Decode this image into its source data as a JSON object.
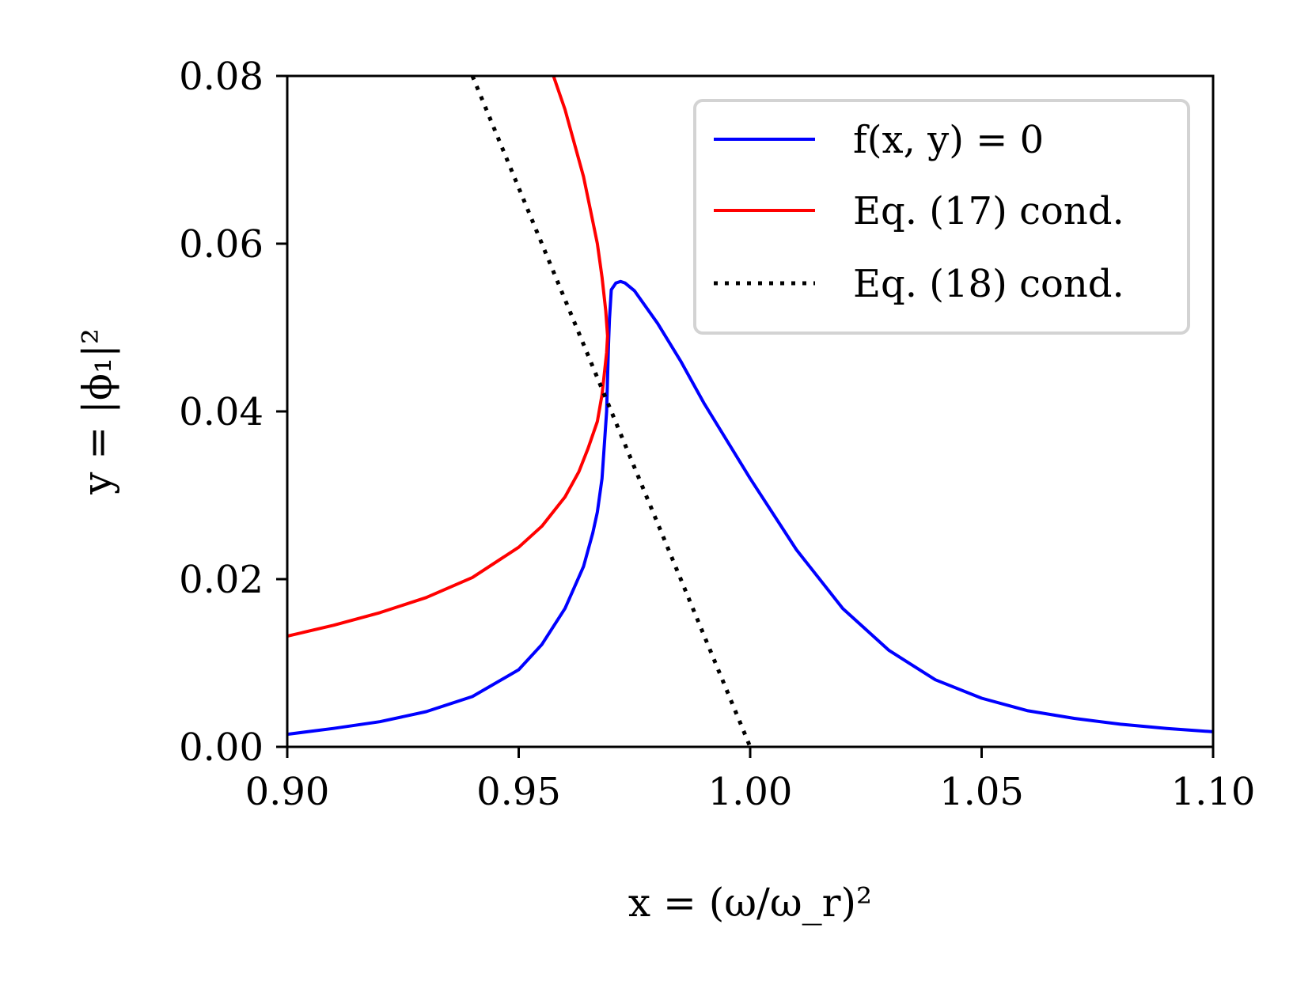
{
  "chart_data": {
    "type": "line",
    "xlabel": "x = (ω/ω_r)²",
    "ylabel": "y = |ϕ₁|²",
    "xlim": [
      0.9,
      1.1
    ],
    "ylim": [
      0.0,
      0.08
    ],
    "xticks": [
      "0.90",
      "0.95",
      "1.00",
      "1.05",
      "1.10"
    ],
    "xtick_values": [
      0.9,
      0.95,
      1.0,
      1.05,
      1.1
    ],
    "yticks": [
      "0.00",
      "0.02",
      "0.04",
      "0.06",
      "0.08"
    ],
    "ytick_values": [
      0.0,
      0.02,
      0.04,
      0.06,
      0.08
    ],
    "grid": false,
    "legend_position": "top-right",
    "series": [
      {
        "name": "f(x, y) = 0",
        "color": "#0000ff",
        "style": "solid",
        "x": [
          0.9,
          0.91,
          0.92,
          0.93,
          0.94,
          0.95,
          0.955,
          0.96,
          0.964,
          0.966,
          0.967,
          0.968,
          0.9685,
          0.969,
          0.9692,
          0.9694,
          0.9696,
          0.97,
          0.971,
          0.972,
          0.973,
          0.975,
          0.98,
          0.985,
          0.99,
          1.0,
          1.01,
          1.02,
          1.03,
          1.04,
          1.05,
          1.06,
          1.07,
          1.08,
          1.09,
          1.1
        ],
        "y": [
          0.0015,
          0.0022,
          0.003,
          0.0042,
          0.006,
          0.0092,
          0.0122,
          0.0165,
          0.0215,
          0.0255,
          0.028,
          0.032,
          0.036,
          0.04,
          0.044,
          0.048,
          0.051,
          0.0545,
          0.0553,
          0.0555,
          0.0553,
          0.0544,
          0.0505,
          0.046,
          0.041,
          0.032,
          0.0235,
          0.0165,
          0.0115,
          0.008,
          0.0058,
          0.0043,
          0.0034,
          0.0027,
          0.0022,
          0.0018
        ]
      },
      {
        "name": "Eq. (17) cond.",
        "color": "#ff0000",
        "style": "solid",
        "x": [
          0.9,
          0.91,
          0.92,
          0.93,
          0.94,
          0.95,
          0.955,
          0.96,
          0.963,
          0.965,
          0.967,
          0.968,
          0.9685,
          0.969,
          0.9692,
          0.9688,
          0.968,
          0.967,
          0.9655,
          0.964,
          0.962,
          0.96,
          0.9575
        ],
        "y": [
          0.0132,
          0.0145,
          0.016,
          0.0178,
          0.0202,
          0.0238,
          0.0263,
          0.0298,
          0.0328,
          0.0356,
          0.0388,
          0.042,
          0.0445,
          0.047,
          0.049,
          0.052,
          0.056,
          0.06,
          0.064,
          0.068,
          0.072,
          0.076,
          0.08
        ]
      },
      {
        "name": "Eq. (18) cond.",
        "color": "#000000",
        "style": "dotted",
        "x": [
          0.94,
          1.0
        ],
        "y": [
          0.08,
          0.0
        ]
      }
    ]
  }
}
